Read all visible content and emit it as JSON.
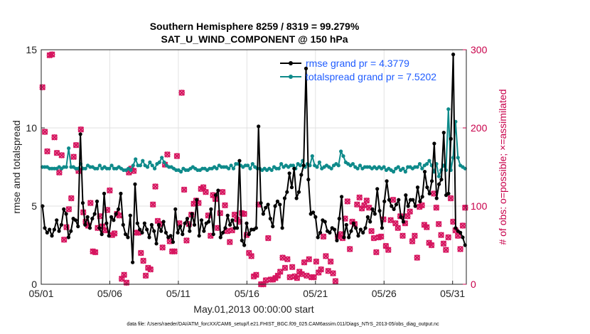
{
  "chart_data": {
    "type": "line",
    "title": "Southern Hemisphere 8259 / 8319 = 99.279%",
    "subtitle": "SAT_U_WIND_COMPONENT @ 150 hPa",
    "xlabel": "May.01,2013 00:00:00 start",
    "ylabel": "rmse and totalspread",
    "y2label": "# of obs: o=possible; ×=assimilated",
    "footer": "data file: /Users/raeder/DAI/ATM_forcXX/CAM6_setup/f.e21.FHIST_BGC.f09_025.CAM6assim.011/Diags_NTrS_2013-05/obs_diag_output.nc",
    "xlim": [
      1,
      32
    ],
    "ylim": [
      0,
      15
    ],
    "y2lim": [
      0,
      300
    ],
    "x_ticks": [
      1,
      6,
      11,
      16,
      21,
      26,
      31
    ],
    "x_tick_labels": [
      "05/01",
      "05/06",
      "05/11",
      "05/16",
      "05/21",
      "05/26",
      "05/31"
    ],
    "y_tick_labels": [
      "0",
      "5",
      "10",
      "15"
    ],
    "y2_tick_labels": [
      "0",
      "100",
      "200",
      "300"
    ],
    "grid": true,
    "legend_position": "top-right",
    "colors": {
      "rmse": "#000000",
      "spread": "#0e8a8a",
      "obs": "#d6155f",
      "legend_text": "#1f5cff",
      "right_axis": "#c8004a"
    },
    "series": [
      {
        "name": "rmse grand pr = 4.3779",
        "role": "rmse",
        "values": [
          5.0,
          3.6,
          3.3,
          3.5,
          3.1,
          3.5,
          4.1,
          3.4,
          3.8,
          4.8,
          4.5,
          3.0,
          3.4,
          4.2,
          4.1,
          3.7,
          9.6,
          5.2,
          3.8,
          4.3,
          3.6,
          4.2,
          4.5,
          5.3,
          3.6,
          3.2,
          5.8,
          3.9,
          3.1,
          4.3,
          4.1,
          4.5,
          4.8,
          5.8,
          3.8,
          3.2,
          3.0,
          4.4,
          1.4,
          6.4,
          3.9,
          3.5,
          3.3,
          3.9,
          3.5,
          3.0,
          3.8,
          3.4,
          2.6,
          3.8,
          3.4,
          4.0,
          3.3,
          3.0,
          3.1,
          2.7,
          4.8,
          3.3,
          3.7,
          3.2,
          3.9,
          4.2,
          3.4,
          4.5,
          3.8,
          5.4,
          3.1,
          4.1,
          3.4,
          3.9,
          4.0,
          4.8,
          3.2,
          5.7,
          6.0,
          3.0,
          3.3,
          3.6,
          4.4,
          3.8,
          4.1,
          3.6,
          3.6,
          7.9,
          2.8,
          2.5,
          3.9,
          3.2,
          3.5,
          3.5,
          3.6,
          10.1,
          5.2,
          4.5,
          4.9,
          5.1,
          4.2,
          3.7,
          5.0,
          5.3,
          5.1,
          3.6,
          5.5,
          5.9,
          7.1,
          6.2,
          7.4,
          5.5,
          5.9,
          7.0,
          7.6,
          13.8,
          6.7,
          4.5,
          4.6,
          4.3,
          3.0,
          3.3,
          4.1,
          4.0,
          3.4,
          3.3,
          3.6,
          3.5,
          2.8,
          4.2,
          5.6,
          3.0,
          3.8,
          3.0,
          3.4,
          3.9,
          3.6,
          3.1,
          3.5,
          3.3,
          3.6,
          4.3,
          4.0,
          4.8,
          4.5,
          6.1,
          4.7,
          3.6,
          5.3,
          6.6,
          5.4,
          5.0,
          4.8,
          5.1,
          5.4,
          4.3,
          4.0,
          5.7,
          5.0,
          5.4,
          5.4,
          5.0,
          6.2,
          5.3,
          5.6,
          7.2,
          6.2,
          5.8,
          6.6,
          9.0,
          5.5,
          6.4,
          6.7,
          9.7,
          5.7,
          5.8,
          9.3,
          14.7,
          3.6,
          3.4,
          3.3,
          3.0,
          2.5
        ]
      },
      {
        "name": "totalspread grand pr = 7.5202",
        "role": "spread",
        "values": [
          7.5,
          7.5,
          7.5,
          7.4,
          7.4,
          7.4,
          7.4,
          7.5,
          7.4,
          7.5,
          7.5,
          8.7,
          7.5,
          7.5,
          7.4,
          7.4,
          7.7,
          7.4,
          7.4,
          7.6,
          7.5,
          7.5,
          7.4,
          7.4,
          7.6,
          7.4,
          7.5,
          7.4,
          7.4,
          7.6,
          7.4,
          7.4,
          7.5,
          7.4,
          7.3,
          7.3,
          7.4,
          7.3,
          7.6,
          8.0,
          7.6,
          7.6,
          7.9,
          7.6,
          7.5,
          7.8,
          7.6,
          7.4,
          7.7,
          7.8,
          8.1,
          7.8,
          7.6,
          7.5,
          7.5,
          7.4,
          7.3,
          7.3,
          7.2,
          7.4,
          7.3,
          7.3,
          7.4,
          7.5,
          7.4,
          7.3,
          7.3,
          7.4,
          7.4,
          7.3,
          7.4,
          7.4,
          7.5,
          7.4,
          7.6,
          7.5,
          7.5,
          7.5,
          7.4,
          7.6,
          7.4,
          7.7,
          7.7,
          7.6,
          7.5,
          7.6,
          7.6,
          7.4,
          7.7,
          7.5,
          7.4,
          7.4,
          7.3,
          7.4,
          7.3,
          7.4,
          7.3,
          7.5,
          7.4,
          7.4,
          7.7,
          7.5,
          7.6,
          7.5,
          7.6,
          7.6,
          7.4,
          7.7,
          7.6,
          7.9,
          7.5,
          7.7,
          7.6,
          8.2,
          7.6,
          7.5,
          7.8,
          7.4,
          7.5,
          7.6,
          7.5,
          7.4,
          7.6,
          7.7,
          7.6,
          8.5,
          8.2,
          7.8,
          7.7,
          7.6,
          7.7,
          7.5,
          7.4,
          7.6,
          7.4,
          7.5,
          7.5,
          7.5,
          7.4,
          7.5,
          7.4,
          7.5,
          7.4,
          7.5,
          7.3,
          7.4,
          7.3,
          7.2,
          7.4,
          7.5,
          7.3,
          7.4,
          7.2,
          7.5,
          7.5,
          7.4,
          7.5,
          7.5,
          7.7,
          7.4,
          7.6,
          7.7,
          7.9,
          7.6,
          7.2,
          7.7,
          6.9,
          7.3,
          7.6,
          7.3,
          11.2,
          7.3,
          8.1,
          10.4,
          8.1,
          7.6,
          7.5,
          7.4
        ]
      }
    ],
    "obs_possible": [
      252,
      195,
      170,
      293,
      294,
      188,
      168,
      143,
      165,
      57,
      73,
      96,
      110,
      163,
      178,
      145,
      198,
      92,
      80,
      75,
      104,
      42,
      41,
      72,
      87,
      74,
      69,
      95,
      120,
      63,
      65,
      90,
      88,
      7,
      12,
      2,
      143,
      148,
      145,
      66,
      66,
      40,
      30,
      11,
      21,
      19,
      102,
      125,
      81,
      77,
      47,
      153,
      166,
      55,
      42,
      42,
      164,
      78,
      245,
      121,
      56,
      77,
      89,
      103,
      107,
      104,
      122,
      124,
      118,
      88,
      62,
      114,
      109,
      72,
      91,
      118,
      101,
      68,
      54,
      69,
      89,
      83,
      80,
      91,
      90,
      63,
      40,
      36,
      10,
      12,
      102,
      0,
      0,
      5,
      59,
      6,
      6,
      8,
      11,
      16,
      34,
      21,
      32,
      9,
      22,
      10,
      8,
      16,
      13,
      28,
      11,
      32,
      9,
      9,
      29,
      15,
      19,
      61,
      36,
      17,
      29,
      14,
      4,
      61,
      64,
      59,
      84,
      106,
      45,
      80,
      77,
      102,
      111,
      97,
      101,
      107,
      98,
      68,
      59,
      41,
      60,
      61,
      83,
      49,
      44,
      82,
      108,
      78,
      72,
      87,
      62,
      78,
      87,
      93,
      55,
      62,
      34,
      99,
      101,
      76,
      73,
      53,
      50,
      116,
      98,
      77,
      63,
      52,
      44,
      60,
      110,
      80,
      69,
      62,
      45,
      75,
      98
    ],
    "obs_assimilated": [
      252,
      195,
      170,
      293,
      294,
      188,
      168,
      143,
      165,
      57,
      73,
      96,
      110,
      163,
      178,
      145,
      198,
      92,
      80,
      75,
      104,
      42,
      41,
      72,
      87,
      74,
      69,
      95,
      120,
      63,
      65,
      90,
      88,
      7,
      12,
      2,
      143,
      148,
      145,
      66,
      66,
      40,
      30,
      11,
      21,
      19,
      102,
      125,
      81,
      77,
      47,
      153,
      166,
      55,
      42,
      42,
      164,
      78,
      245,
      121,
      56,
      77,
      89,
      103,
      107,
      104,
      122,
      124,
      118,
      88,
      62,
      114,
      109,
      72,
      91,
      118,
      101,
      68,
      54,
      69,
      89,
      83,
      80,
      91,
      90,
      63,
      40,
      36,
      10,
      12,
      102,
      0,
      0,
      5,
      59,
      6,
      6,
      8,
      11,
      16,
      34,
      21,
      32,
      9,
      22,
      10,
      8,
      16,
      13,
      28,
      11,
      32,
      9,
      9,
      29,
      15,
      19,
      61,
      36,
      17,
      29,
      14,
      4,
      61,
      64,
      59,
      84,
      106,
      45,
      80,
      77,
      102,
      111,
      97,
      101,
      107,
      98,
      68,
      59,
      41,
      60,
      61,
      83,
      49,
      44,
      82,
      108,
      78,
      72,
      87,
      62,
      78,
      87,
      93,
      55,
      62,
      34,
      99,
      101,
      76,
      73,
      53,
      50,
      116,
      98,
      77,
      63,
      52,
      44,
      60,
      110,
      80,
      69,
      62,
      45,
      75,
      98
    ]
  }
}
